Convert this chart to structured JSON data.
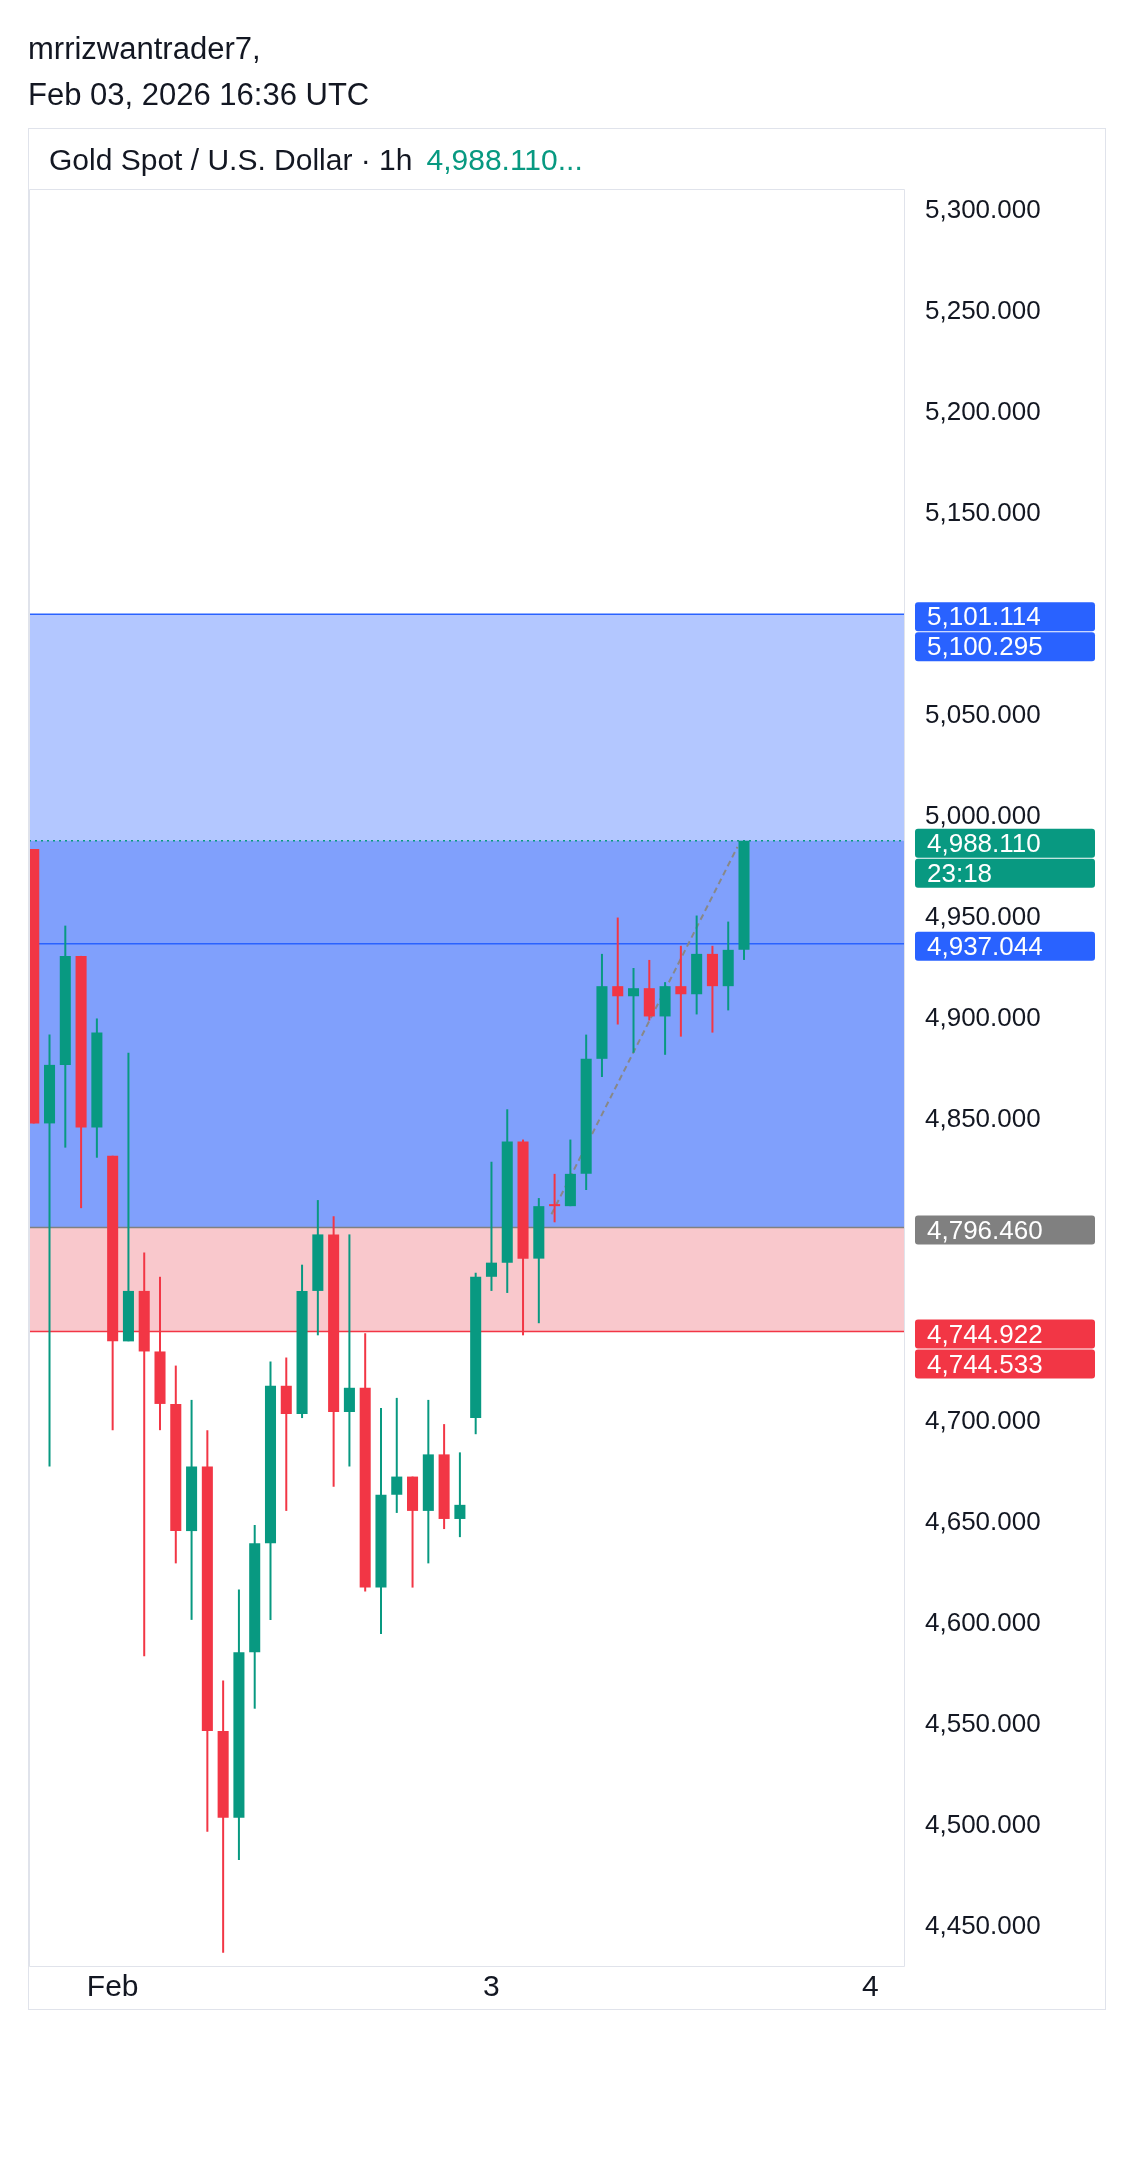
{
  "chart_data": {
    "type": "candlestick",
    "title": "Gold Spot / U.S. Dollar · 1h",
    "subtitle": "4,988.110...",
    "annotations": [
      "mrrizwantrader7,",
      "Feb 03, 2026 16:36 UTC"
    ],
    "x": [
      "2026-02-01T19:00",
      "2026-02-01T20:00",
      "2026-02-01T21:00",
      "2026-02-01T22:00",
      "2026-02-01T23:00",
      "2026-02-02T00:00",
      "2026-02-02T01:00",
      "2026-02-02T02:00",
      "2026-02-02T03:00",
      "2026-02-02T04:00",
      "2026-02-02T05:00",
      "2026-02-02T06:00",
      "2026-02-02T07:00",
      "2026-02-02T08:00",
      "2026-02-02T09:00",
      "2026-02-02T10:00",
      "2026-02-02T11:00",
      "2026-02-02T12:00",
      "2026-02-02T13:00",
      "2026-02-02T14:00",
      "2026-02-02T15:00",
      "2026-02-02T16:00",
      "2026-02-02T17:00",
      "2026-02-02T18:00",
      "2026-02-02T19:00",
      "2026-02-02T20:00",
      "2026-02-02T21:00",
      "2026-02-02T22:00",
      "2026-02-02T23:00",
      "2026-02-03T00:00",
      "2026-02-03T01:00",
      "2026-02-03T02:00",
      "2026-02-03T03:00",
      "2026-02-03T04:00",
      "2026-02-03T05:00",
      "2026-02-03T06:00",
      "2026-02-03T07:00",
      "2026-02-03T08:00",
      "2026-02-03T09:00",
      "2026-02-03T10:00",
      "2026-02-03T11:00",
      "2026-02-03T12:00",
      "2026-02-03T13:00",
      "2026-02-03T14:00",
      "2026-02-03T15:00",
      "2026-02-03T16:00"
    ],
    "ohlc": [
      [
        4984,
        4984,
        4848,
        4848
      ],
      [
        4848,
        4892,
        4678,
        4877
      ],
      [
        4877,
        4946,
        4836,
        4931
      ],
      [
        4931,
        4931,
        4806,
        4846
      ],
      [
        4846,
        4900,
        4831,
        4893
      ],
      [
        4832,
        4832,
        4696,
        4740
      ],
      [
        4740,
        4883,
        4740,
        4765
      ],
      [
        4765,
        4784,
        4584,
        4735
      ],
      [
        4735,
        4772,
        4696,
        4709
      ],
      [
        4709,
        4728,
        4630,
        4646
      ],
      [
        4646,
        4711,
        4602,
        4678
      ],
      [
        4678,
        4696,
        4497,
        4547
      ],
      [
        4547,
        4572,
        4437,
        4504
      ],
      [
        4504,
        4617,
        4483,
        4586
      ],
      [
        4586,
        4649,
        4558,
        4640
      ],
      [
        4640,
        4730,
        4602,
        4718
      ],
      [
        4718,
        4732,
        4656,
        4704
      ],
      [
        4704,
        4778,
        4702,
        4765
      ],
      [
        4765,
        4810,
        4743,
        4793
      ],
      [
        4793,
        4802,
        4668,
        4705
      ],
      [
        4705,
        4793,
        4678,
        4717
      ],
      [
        4717,
        4744,
        4616,
        4618
      ],
      [
        4618,
        4707,
        4595,
        4664
      ],
      [
        4664,
        4712,
        4655,
        4673
      ],
      [
        4673,
        4673,
        4618,
        4656
      ],
      [
        4656,
        4711,
        4630,
        4684
      ],
      [
        4684,
        4699,
        4647,
        4652
      ],
      [
        4652,
        4685,
        4643,
        4659
      ],
      [
        4702,
        4774,
        4694,
        4772
      ],
      [
        4772,
        4829,
        4765,
        4779
      ],
      [
        4779,
        4855,
        4764,
        4839
      ],
      [
        4839,
        4840,
        4743,
        4781
      ],
      [
        4781,
        4811,
        4749,
        4807
      ],
      [
        4808,
        4823,
        4799,
        4807
      ],
      [
        4807,
        4840,
        4807,
        4823
      ],
      [
        4823,
        4892,
        4815,
        4880
      ],
      [
        4880,
        4932,
        4871,
        4916
      ],
      [
        4916,
        4950,
        4897,
        4911
      ],
      [
        4911,
        4925,
        4883,
        4915
      ],
      [
        4915,
        4929,
        4899,
        4901
      ],
      [
        4901,
        4918,
        4882,
        4916
      ],
      [
        4916,
        4936,
        4891,
        4912
      ],
      [
        4912,
        4951,
        4902,
        4932
      ],
      [
        4932,
        4936,
        4893,
        4916
      ],
      [
        4916,
        4948,
        4904,
        4934
      ],
      [
        4934,
        4988.11,
        4929,
        4988.11
      ]
    ],
    "colors": [
      "#f23645",
      "#089981",
      "#089981",
      "#f23645",
      "#089981",
      "#f23645",
      "#089981",
      "#f23645",
      "#f23645",
      "#f23645",
      "#089981",
      "#f23645",
      "#f23645",
      "#089981",
      "#089981",
      "#089981",
      "#f23645",
      "#089981",
      "#089981",
      "#f23645",
      "#089981",
      "#f23645",
      "#089981",
      "#089981",
      "#f23645",
      "#089981",
      "#f23645",
      "#089981",
      "#089981",
      "#089981",
      "#089981",
      "#f23645",
      "#089981",
      "#f23645",
      "#089981",
      "#089981",
      "#089981",
      "#f23645",
      "#089981",
      "#f23645",
      "#089981",
      "#f23645",
      "#089981",
      "#f23645",
      "#089981",
      "#089981"
    ],
    "series": [
      {
        "type": "line",
        "x": [
          "2026-02-03T03:48",
          "2026-02-03T15:35"
        ],
        "values": [
          4803,
          4985
        ],
        "color": "#888888",
        "line_style": "dashed"
      }
    ],
    "xlim": [
      "2026-02-01T18:42",
      "2026-02-04T02:12"
    ],
    "xticks": [
      {
        "value": "2026-02-02",
        "label": "Feb"
      },
      {
        "value": "2026-02-03",
        "label": "3"
      },
      {
        "value": "2026-02-04",
        "label": "4"
      }
    ],
    "ylim": [
      4430,
      5311
    ],
    "yticks": [
      {
        "value": 4450,
        "label": "4,450.000"
      },
      {
        "value": 4500,
        "label": "4,500.000"
      },
      {
        "value": 4550,
        "label": "4,550.000"
      },
      {
        "value": 4600,
        "label": "4,600.000"
      },
      {
        "value": 4650,
        "label": "4,650.000"
      },
      {
        "value": 4700,
        "label": "4,700.000"
      },
      {
        "value": 4850,
        "label": "4,850.000"
      },
      {
        "value": 4900,
        "label": "4,900.000"
      },
      {
        "value": 4950,
        "label": "4,950.000"
      },
      {
        "value": 5000,
        "label": "5,000.000"
      },
      {
        "value": 5050,
        "label": "5,050.000"
      },
      {
        "value": 5150,
        "label": "5,150.000"
      },
      {
        "value": 5200,
        "label": "5,200.000"
      },
      {
        "value": 5250,
        "label": "5,250.000"
      },
      {
        "value": 5300,
        "label": "5,300.000"
      }
    ],
    "bands": [
      {
        "axis": "y",
        "from": 4796.46,
        "to": 5100.295,
        "color": "#b3c7ff"
      },
      {
        "axis": "y",
        "from": 4796.46,
        "to": 4988.11,
        "color": "#80a0fc"
      },
      {
        "axis": "y",
        "from": 4744.922,
        "to": 4796.46,
        "color": "#f9c8cc"
      }
    ],
    "ref_lines": [
      {
        "axis": "y",
        "value": 5100.295,
        "label": "5,101.114\n5,100.295",
        "color": "#2962ff"
      },
      {
        "axis": "y",
        "value": 4988.11,
        "label": "4,988.110\n23:18",
        "color": "#089981",
        "line_style": "dotted"
      },
      {
        "axis": "y",
        "value": 4937.044,
        "label": "4,937.044",
        "color": "#2962ff"
      },
      {
        "axis": "y",
        "value": 4796.46,
        "label": "4,796.460",
        "color": "#808080"
      },
      {
        "axis": "y",
        "value": 4744.922,
        "label": "4,744.922\n4,744.533",
        "color": "#f23645"
      }
    ],
    "grid": false,
    "legend": false
  }
}
